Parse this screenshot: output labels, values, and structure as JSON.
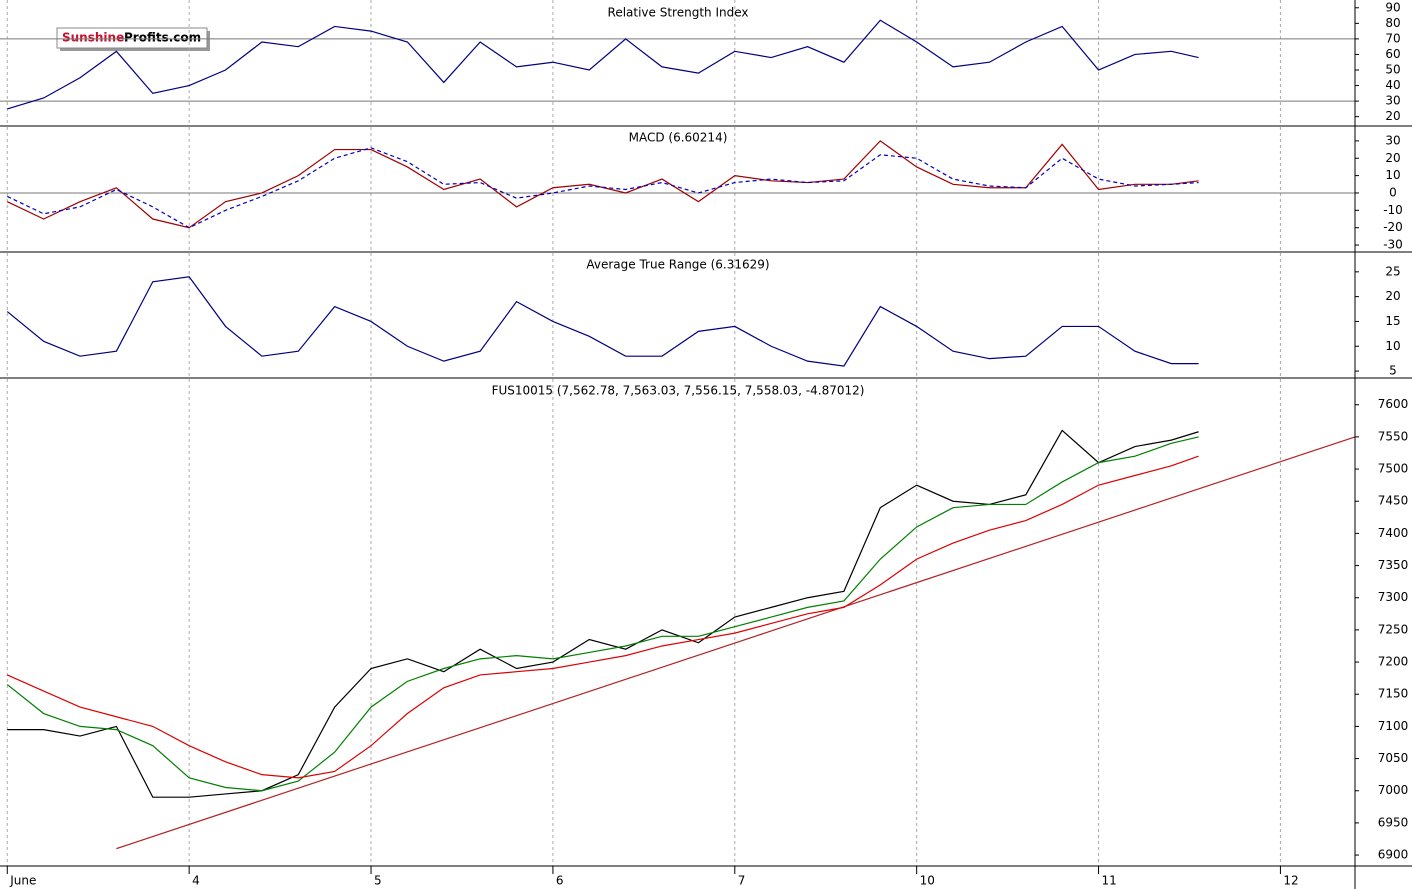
{
  "logo": {
    "part1": "Sunshine",
    "part2": "Profits.com"
  },
  "chart_data": [
    {
      "type": "line",
      "title": "Relative Strength Index",
      "x": [
        0,
        0.2,
        0.4,
        0.6,
        0.8,
        1,
        1.2,
        1.4,
        1.6,
        1.8,
        2,
        2.2,
        2.4,
        2.6,
        2.8,
        3,
        3.2,
        3.4,
        3.6,
        3.8,
        4,
        4.2,
        4.4,
        4.6,
        4.8,
        5,
        5.2,
        5.4,
        5.6,
        5.8,
        6,
        6.2,
        6.4,
        6.55
      ],
      "series": [
        {
          "color": "#000080",
          "values": [
            25,
            32,
            45,
            62,
            35,
            40,
            50,
            68,
            65,
            78,
            75,
            68,
            42,
            68,
            52,
            55,
            50,
            70,
            52,
            48,
            62,
            58,
            65,
            55,
            82,
            68,
            52,
            55,
            68,
            78,
            50,
            60,
            62,
            58
          ]
        }
      ],
      "hlines": [
        30,
        70
      ],
      "ylim": [
        14,
        95
      ],
      "yticks": [
        20,
        30,
        40,
        50,
        60,
        70,
        80,
        90
      ]
    },
    {
      "type": "line",
      "title": "MACD (6.60214)",
      "x": [
        0,
        0.2,
        0.4,
        0.6,
        0.8,
        1,
        1.2,
        1.4,
        1.6,
        1.8,
        2,
        2.2,
        2.4,
        2.6,
        2.8,
        3,
        3.2,
        3.4,
        3.6,
        3.8,
        4,
        4.2,
        4.4,
        4.6,
        4.8,
        5,
        5.2,
        5.4,
        5.6,
        5.8,
        6,
        6.2,
        6.4,
        6.55
      ],
      "series": [
        {
          "color": "#a00000",
          "values": [
            -5,
            -15,
            -5,
            3,
            -15,
            -20,
            -5,
            0,
            10,
            25,
            25,
            15,
            2,
            8,
            -8,
            3,
            5,
            0,
            8,
            -5,
            10,
            7,
            6,
            8,
            30,
            15,
            5,
            3,
            3,
            28,
            2,
            5,
            5,
            7
          ]
        },
        {
          "color": "#0000c0",
          "dashed": true,
          "values": [
            -2,
            -12,
            -8,
            2,
            -8,
            -20,
            -10,
            -2,
            7,
            20,
            26,
            18,
            5,
            6,
            -3,
            0,
            4,
            2,
            6,
            0,
            6,
            8,
            6,
            7,
            22,
            20,
            8,
            4,
            3,
            20,
            8,
            4,
            5,
            6
          ]
        }
      ],
      "hlines": [
        0
      ],
      "ylim": [
        -34,
        38
      ],
      "yticks": [
        -30,
        -20,
        -10,
        0,
        10,
        20,
        30
      ]
    },
    {
      "type": "line",
      "title": "Average True Range (6.31629)",
      "x": [
        0,
        0.2,
        0.4,
        0.6,
        0.8,
        1,
        1.2,
        1.4,
        1.6,
        1.8,
        2,
        2.2,
        2.4,
        2.6,
        2.8,
        3,
        3.2,
        3.4,
        3.6,
        3.8,
        4,
        4.2,
        4.4,
        4.6,
        4.8,
        5,
        5.2,
        5.4,
        5.6,
        5.8,
        6,
        6.2,
        6.4,
        6.55
      ],
      "series": [
        {
          "color": "#000080",
          "values": [
            17,
            11,
            8,
            9,
            23,
            24,
            14,
            8,
            9,
            18,
            15,
            10,
            7,
            9,
            19,
            15,
            12,
            8,
            8,
            13,
            14,
            10,
            7,
            6,
            18,
            14,
            9,
            7.5,
            8,
            14,
            14,
            9,
            6.5,
            6.5
          ]
        }
      ],
      "ylim": [
        3.6,
        28.8
      ],
      "yticks": [
        5,
        10,
        15,
        20,
        25
      ]
    },
    {
      "type": "line",
      "title": "FUS10015 (7,562.78, 7,563.03, 7,556.15, 7,558.03, -4.87012)",
      "x": [
        0,
        0.2,
        0.4,
        0.6,
        0.8,
        1,
        1.2,
        1.4,
        1.6,
        1.8,
        2,
        2.2,
        2.4,
        2.6,
        2.8,
        3,
        3.2,
        3.4,
        3.6,
        3.8,
        4,
        4.2,
        4.4,
        4.6,
        4.8,
        5,
        5.2,
        5.4,
        5.6,
        5.8,
        6,
        6.2,
        6.4,
        6.55
      ],
      "series": [
        {
          "color": "#000000",
          "values": [
            7095,
            7095,
            7085,
            7100,
            6990,
            6990,
            6995,
            7000,
            7025,
            7130,
            7190,
            7205,
            7185,
            7220,
            7190,
            7200,
            7235,
            7220,
            7250,
            7230,
            7270,
            7285,
            7300,
            7310,
            7440,
            7475,
            7450,
            7445,
            7460,
            7560,
            7510,
            7535,
            7545,
            7558
          ]
        },
        {
          "color": "#008000",
          "values": [
            7165,
            7120,
            7100,
            7095,
            7070,
            7020,
            7005,
            7000,
            7015,
            7060,
            7130,
            7170,
            7190,
            7205,
            7210,
            7205,
            7215,
            7225,
            7240,
            7240,
            7255,
            7270,
            7285,
            7295,
            7360,
            7410,
            7440,
            7445,
            7445,
            7480,
            7510,
            7520,
            7540,
            7550
          ]
        },
        {
          "color": "#dd0000",
          "values": [
            7180,
            7155,
            7130,
            7115,
            7100,
            7070,
            7045,
            7025,
            7020,
            7030,
            7070,
            7120,
            7160,
            7180,
            7185,
            7190,
            7200,
            7210,
            7225,
            7235,
            7245,
            7260,
            7275,
            7285,
            7320,
            7360,
            7385,
            7405,
            7420,
            7445,
            7475,
            7490,
            7505,
            7520
          ]
        }
      ],
      "trendline": {
        "color": "#b22222",
        "x": [
          0.6,
          7.41
        ],
        "values": [
          6910,
          7550
        ]
      },
      "ylim": [
        6883,
        7640
      ],
      "yticks": [
        6900,
        6950,
        7000,
        7050,
        7100,
        7150,
        7200,
        7250,
        7300,
        7350,
        7400,
        7450,
        7500,
        7550,
        7600
      ],
      "xlim": [
        -0.04,
        7.41
      ],
      "xticks": [
        {
          "value": 0,
          "label": "June"
        },
        {
          "value": 1,
          "label": "4"
        },
        {
          "value": 2,
          "label": "5"
        },
        {
          "value": 3,
          "label": "6"
        },
        {
          "value": 4,
          "label": "7"
        },
        {
          "value": 5,
          "label": "10"
        },
        {
          "value": 6,
          "label": "11"
        },
        {
          "value": 7,
          "label": "12"
        }
      ]
    }
  ]
}
